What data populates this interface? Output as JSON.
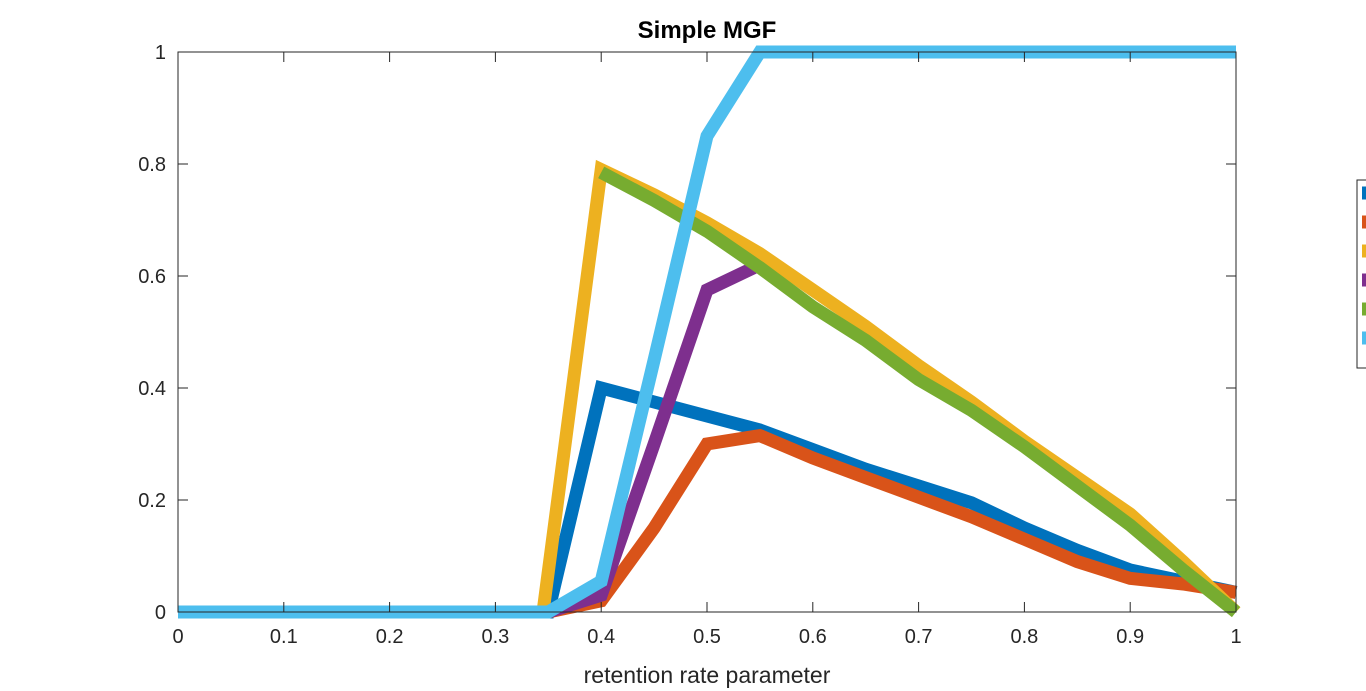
{
  "chart_data": {
    "type": "line",
    "title": "Simple MGF",
    "xlabel": "retention rate parameter",
    "ylabel": "",
    "xlim": [
      0,
      1
    ],
    "ylim": [
      0,
      1
    ],
    "xticks": [
      "0",
      "0.1",
      "0.2",
      "0.3",
      "0.4",
      "0.5",
      "0.6",
      "0.7",
      "0.8",
      "0.9",
      "1"
    ],
    "yticks": [
      "0",
      "0.2",
      "0.4",
      "0.6",
      "0.8",
      "1"
    ],
    "grid": false,
    "legend_position": "right-outside (truncated)",
    "series": [
      {
        "color": "#0072BD",
        "points": [
          [
            0,
            0
          ],
          [
            0.35,
            0
          ],
          [
            0.4,
            0.4
          ],
          [
            0.5,
            0.35
          ],
          [
            0.55,
            0.325
          ],
          [
            0.6,
            0.29
          ],
          [
            0.65,
            0.255
          ],
          [
            0.7,
            0.225
          ],
          [
            0.75,
            0.195
          ],
          [
            0.8,
            0.15
          ],
          [
            0.85,
            0.11
          ],
          [
            0.9,
            0.075
          ],
          [
            0.95,
            0.055
          ],
          [
            1,
            0.035
          ]
        ]
      },
      {
        "color": "#D95319",
        "points": [
          [
            0,
            0
          ],
          [
            0.35,
            0
          ],
          [
            0.4,
            0.02
          ],
          [
            0.45,
            0.15
          ],
          [
            0.5,
            0.3
          ],
          [
            0.55,
            0.315
          ],
          [
            0.6,
            0.275
          ],
          [
            0.65,
            0.24
          ],
          [
            0.7,
            0.205
          ],
          [
            0.75,
            0.17
          ],
          [
            0.8,
            0.13
          ],
          [
            0.85,
            0.09
          ],
          [
            0.9,
            0.06
          ],
          [
            0.95,
            0.05
          ],
          [
            1,
            0.035
          ]
        ]
      },
      {
        "color": "#EDB120",
        "points": [
          [
            0,
            0
          ],
          [
            0.345,
            0
          ],
          [
            0.4,
            0.79
          ],
          [
            0.45,
            0.745
          ],
          [
            0.5,
            0.695
          ],
          [
            0.55,
            0.64
          ],
          [
            0.6,
            0.575
          ],
          [
            0.65,
            0.51
          ],
          [
            0.7,
            0.44
          ],
          [
            0.75,
            0.375
          ],
          [
            0.8,
            0.305
          ],
          [
            0.85,
            0.24
          ],
          [
            0.9,
            0.175
          ],
          [
            0.95,
            0.09
          ],
          [
            1,
            0
          ]
        ]
      },
      {
        "color": "#7E2F8E",
        "points": [
          [
            0,
            0
          ],
          [
            0.35,
            0
          ],
          [
            0.4,
            0.03
          ],
          [
            0.45,
            0.3
          ],
          [
            0.5,
            0.575
          ],
          [
            0.55,
            0.62
          ]
        ]
      },
      {
        "color": "#77AC30",
        "points": [
          [
            0.4,
            0.785
          ],
          [
            0.45,
            0.735
          ],
          [
            0.5,
            0.68
          ],
          [
            0.55,
            0.615
          ],
          [
            0.6,
            0.545
          ],
          [
            0.65,
            0.485
          ],
          [
            0.7,
            0.415
          ],
          [
            0.75,
            0.36
          ],
          [
            0.8,
            0.295
          ],
          [
            0.85,
            0.225
          ],
          [
            0.9,
            0.155
          ],
          [
            0.95,
            0.075
          ],
          [
            1,
            0
          ]
        ]
      },
      {
        "color": "#4DBEEE",
        "points": [
          [
            0,
            0
          ],
          [
            0.35,
            0
          ],
          [
            0.4,
            0.055
          ],
          [
            0.45,
            0.45
          ],
          [
            0.5,
            0.85
          ],
          [
            0.55,
            1
          ],
          [
            0.6,
            1
          ],
          [
            0.7,
            1
          ],
          [
            0.8,
            1
          ],
          [
            0.9,
            1
          ],
          [
            1,
            1
          ]
        ]
      }
    ]
  }
}
